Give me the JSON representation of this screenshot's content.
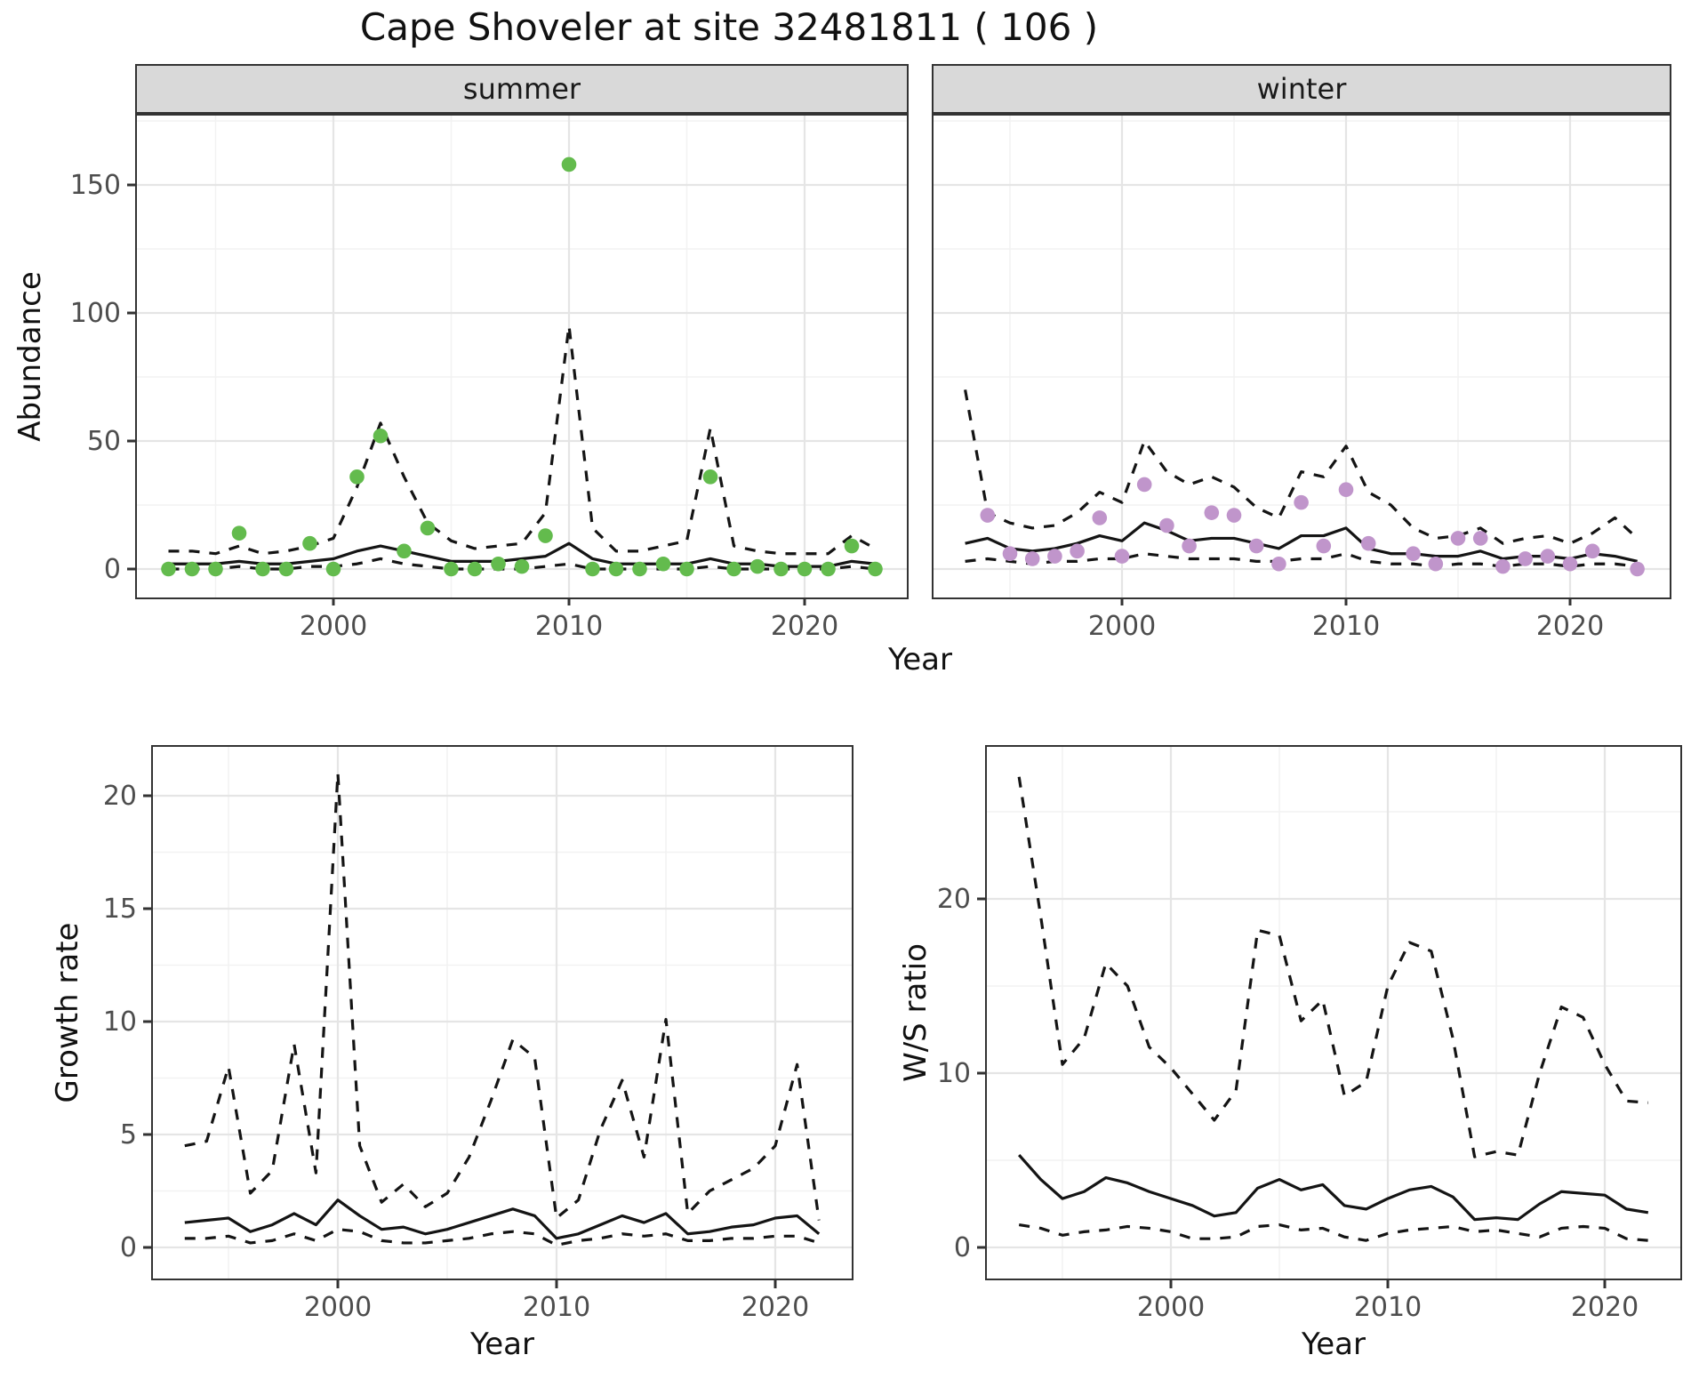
{
  "title": "Cape Shoveler at site 32481811 ( 106 )",
  "facets": [
    {
      "label": "summer"
    },
    {
      "label": "winter"
    }
  ],
  "axis_titles": {
    "y_top": "Abundance",
    "x": "Year",
    "y_bottom_left": "Growth rate",
    "y_bottom_right": "W/S ratio"
  },
  "colors": {
    "summer_point": "#63BB4D",
    "winter_point": "#C095CB",
    "line": "#141414",
    "strip_bg": "#D9D9D9",
    "grid_major": "#E5E5E5",
    "grid_minor": "#F2F2F2",
    "axis_text": "#4D4D4D",
    "panel_border": "#333333"
  },
  "chart_data": [
    {
      "type": "scatter",
      "facet": "summer",
      "xlabel": "Year",
      "ylabel": "Abundance",
      "x_ticks": [
        2000,
        2010,
        2020
      ],
      "y_ticks": [
        0,
        50,
        100,
        150
      ],
      "xlim": [
        1991.5,
        2024.5
      ],
      "ylim": [
        -12,
        178
      ],
      "grid": true,
      "point_color": "#63BB4D",
      "x": [
        1993,
        1994,
        1995,
        1996,
        1997,
        1998,
        1999,
        2000,
        2001,
        2002,
        2003,
        2004,
        2005,
        2006,
        2007,
        2008,
        2009,
        2010,
        2011,
        2012,
        2013,
        2014,
        2015,
        2016,
        2017,
        2018,
        2019,
        2020,
        2021,
        2022,
        2023
      ],
      "points": [
        0,
        0,
        0,
        14,
        0,
        0,
        10,
        0,
        36,
        52,
        7,
        16,
        0,
        0,
        2,
        1,
        13,
        158,
        0,
        0,
        0,
        2,
        0,
        36,
        0,
        1,
        0,
        0,
        0,
        9,
        0
      ],
      "series": [
        {
          "name": "mean",
          "style": "solid",
          "values": [
            2,
            2,
            2,
            3,
            2,
            2,
            3,
            4,
            7,
            9,
            7,
            5,
            3,
            3,
            3,
            4,
            5,
            10,
            4,
            2,
            2,
            2,
            2,
            4,
            2,
            2,
            1,
            1,
            1,
            3,
            2
          ]
        },
        {
          "name": "upper_ci",
          "style": "dashed",
          "values": [
            7,
            7,
            6,
            9,
            6,
            7,
            9,
            12,
            32,
            57,
            36,
            18,
            11,
            8,
            9,
            10,
            22,
            95,
            16,
            7,
            7,
            9,
            11,
            55,
            9,
            7,
            6,
            6,
            6,
            13,
            8
          ]
        },
        {
          "name": "lower_ci",
          "style": "dashed",
          "values": [
            0,
            0,
            0,
            1,
            0,
            0,
            1,
            1,
            2,
            4,
            2,
            1,
            0,
            0,
            0,
            0,
            1,
            2,
            0,
            0,
            0,
            0,
            0,
            1,
            0,
            0,
            0,
            0,
            0,
            1,
            0
          ]
        }
      ]
    },
    {
      "type": "scatter",
      "facet": "winter",
      "xlabel": "Year",
      "ylabel": "Abundance",
      "x_ticks": [
        2000,
        2010,
        2020
      ],
      "y_ticks": [
        0,
        50,
        100,
        150
      ],
      "xlim": [
        1991.5,
        2024.5
      ],
      "ylim": [
        -12,
        178
      ],
      "grid": true,
      "point_color": "#C095CB",
      "x": [
        1993,
        1994,
        1995,
        1996,
        1997,
        1998,
        1999,
        2000,
        2001,
        2002,
        2003,
        2004,
        2005,
        2006,
        2007,
        2008,
        2009,
        2010,
        2011,
        2012,
        2013,
        2014,
        2015,
        2016,
        2017,
        2018,
        2019,
        2020,
        2021,
        2022,
        2023
      ],
      "points": [
        null,
        21,
        6,
        4,
        5,
        7,
        20,
        5,
        33,
        17,
        9,
        22,
        21,
        9,
        2,
        26,
        9,
        31,
        10,
        null,
        6,
        2,
        12,
        12,
        1,
        4,
        5,
        2,
        7,
        null,
        0
      ],
      "series": [
        {
          "name": "mean",
          "style": "solid",
          "values": [
            10,
            12,
            8,
            7,
            8,
            10,
            13,
            11,
            18,
            15,
            11,
            12,
            12,
            10,
            8,
            13,
            13,
            16,
            8,
            6,
            6,
            5,
            5,
            7,
            4,
            5,
            5,
            4,
            6,
            5,
            3
          ]
        },
        {
          "name": "upper_ci",
          "style": "dashed",
          "values": [
            70,
            22,
            18,
            16,
            17,
            22,
            30,
            26,
            50,
            38,
            33,
            36,
            32,
            24,
            20,
            38,
            36,
            48,
            30,
            25,
            16,
            12,
            13,
            16,
            10,
            12,
            13,
            10,
            14,
            20,
            12
          ]
        },
        {
          "name": "lower_ci",
          "style": "dashed",
          "values": [
            3,
            4,
            3,
            2,
            3,
            3,
            4,
            4,
            6,
            5,
            4,
            4,
            4,
            3,
            3,
            4,
            4,
            6,
            3,
            2,
            2,
            1,
            2,
            2,
            1,
            2,
            2,
            1,
            2,
            2,
            1
          ]
        }
      ]
    },
    {
      "type": "line",
      "facet": null,
      "xlabel": "Year",
      "ylabel": "Growth rate",
      "x_ticks": [
        2000,
        2010,
        2020
      ],
      "y_ticks": [
        0,
        5,
        10,
        15,
        20
      ],
      "xlim": [
        1991.5,
        2023.5
      ],
      "ylim": [
        -0.6,
        22.2
      ],
      "grid": true,
      "x": [
        1993,
        1994,
        1995,
        1996,
        1997,
        1998,
        1999,
        2000,
        2001,
        2002,
        2003,
        2004,
        2005,
        2006,
        2007,
        2008,
        2009,
        2010,
        2011,
        2012,
        2013,
        2014,
        2015,
        2016,
        2017,
        2018,
        2019,
        2020,
        2021,
        2022
      ],
      "series": [
        {
          "name": "mean",
          "style": "solid",
          "values": [
            1.1,
            1.2,
            1.3,
            0.7,
            1.0,
            1.5,
            1.0,
            2.1,
            1.4,
            0.8,
            0.9,
            0.6,
            0.8,
            1.1,
            1.4,
            1.7,
            1.4,
            0.4,
            0.6,
            1.0,
            1.4,
            1.1,
            1.5,
            0.6,
            0.7,
            0.9,
            1.0,
            1.3,
            1.4,
            0.6
          ]
        },
        {
          "name": "upper_ci",
          "style": "dashed",
          "values": [
            4.5,
            4.7,
            8.0,
            2.4,
            3.4,
            9.0,
            3.3,
            21.0,
            4.5,
            2.0,
            2.8,
            1.8,
            2.4,
            4.0,
            6.5,
            9.2,
            8.4,
            1.3,
            2.1,
            5.2,
            7.4,
            4.0,
            10.1,
            1.5,
            2.5,
            3.0,
            3.5,
            4.5,
            8.1,
            1.2
          ]
        },
        {
          "name": "lower_ci",
          "style": "dashed",
          "values": [
            0.4,
            0.4,
            0.5,
            0.2,
            0.3,
            0.6,
            0.3,
            0.8,
            0.7,
            0.3,
            0.2,
            0.2,
            0.3,
            0.4,
            0.6,
            0.7,
            0.6,
            0.1,
            0.3,
            0.4,
            0.6,
            0.5,
            0.6,
            0.3,
            0.3,
            0.4,
            0.4,
            0.5,
            0.5,
            0.2
          ]
        }
      ]
    },
    {
      "type": "line",
      "facet": null,
      "xlabel": "Year",
      "ylabel": "W/S ratio",
      "x_ticks": [
        2000,
        2010,
        2020
      ],
      "y_ticks": [
        0,
        10,
        20
      ],
      "xlim": [
        1991.5,
        2023.5
      ],
      "ylim": [
        -1,
        28.8
      ],
      "grid": true,
      "x": [
        1993,
        1994,
        1995,
        1996,
        1997,
        1998,
        1999,
        2000,
        2001,
        2002,
        2003,
        2004,
        2005,
        2006,
        2007,
        2008,
        2009,
        2010,
        2011,
        2012,
        2013,
        2014,
        2015,
        2016,
        2017,
        2018,
        2019,
        2020,
        2021,
        2022
      ],
      "series": [
        {
          "name": "mean",
          "style": "solid",
          "values": [
            5.3,
            3.9,
            2.8,
            3.2,
            4.0,
            3.7,
            3.2,
            2.8,
            2.4,
            1.8,
            2.0,
            3.4,
            3.9,
            3.3,
            3.6,
            2.4,
            2.2,
            2.8,
            3.3,
            3.5,
            2.9,
            1.6,
            1.7,
            1.6,
            2.5,
            3.2,
            3.1,
            3.0,
            2.2,
            2.0
          ]
        },
        {
          "name": "upper_ci",
          "style": "dashed",
          "values": [
            27.0,
            19.0,
            10.5,
            12.0,
            16.3,
            15.0,
            11.5,
            10.3,
            8.8,
            7.3,
            9.0,
            18.2,
            17.9,
            13.0,
            14.2,
            8.7,
            9.5,
            15.0,
            17.5,
            17.0,
            12.0,
            5.2,
            5.5,
            5.3,
            10.0,
            13.8,
            13.2,
            10.5,
            8.4,
            8.3
          ]
        },
        {
          "name": "lower_ci",
          "style": "dashed",
          "values": [
            1.3,
            1.1,
            0.7,
            0.9,
            1.0,
            1.2,
            1.1,
            0.9,
            0.5,
            0.5,
            0.6,
            1.2,
            1.3,
            1.0,
            1.1,
            0.6,
            0.4,
            0.8,
            1.0,
            1.1,
            1.2,
            0.9,
            1.0,
            0.8,
            0.6,
            1.1,
            1.2,
            1.1,
            0.5,
            0.4
          ]
        }
      ]
    }
  ]
}
